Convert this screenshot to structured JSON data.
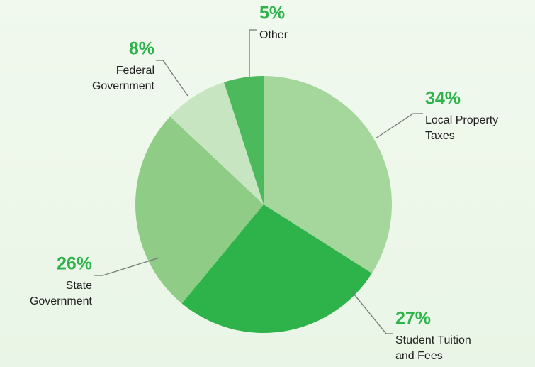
{
  "chart_data": {
    "type": "pie",
    "categories": [
      [
        "Local Property",
        "Taxes"
      ],
      [
        "Student Tuition",
        "and Fees"
      ],
      [
        "State",
        "Government"
      ],
      [
        "Federal",
        "Government"
      ],
      [
        "Other"
      ]
    ],
    "values": [
      34,
      27,
      26,
      8,
      5
    ],
    "value_labels": [
      "34%",
      "27%",
      "26%",
      "8%",
      "5%"
    ],
    "colors": [
      "#a5d69c",
      "#2db34a",
      "#8fcd87",
      "#c6e5c0",
      "#4cba5c"
    ]
  }
}
